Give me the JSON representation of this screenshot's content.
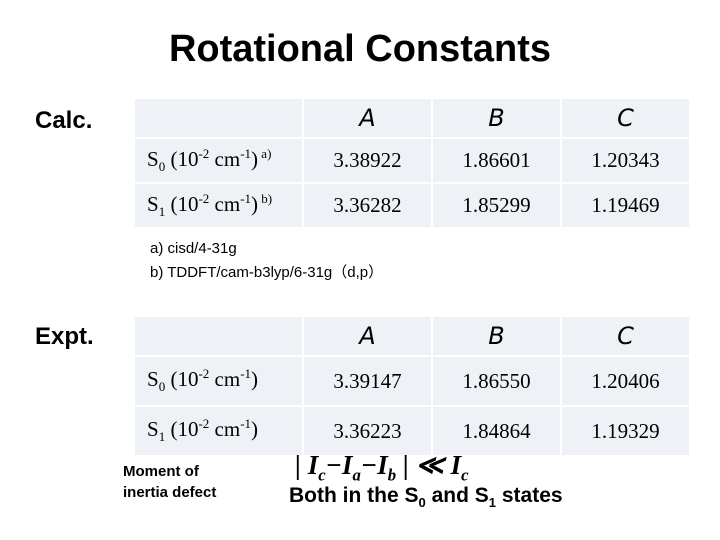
{
  "title": "Rotational Constants",
  "calc": {
    "label": "Calc.",
    "table": {
      "header": [
        "A",
        "B",
        "C"
      ],
      "rows": [
        {
          "label": [
            {
              "text": "S"
            },
            {
              "text": "0",
              "style": "sub"
            },
            {
              "text": " (10"
            },
            {
              "text": "-2",
              "style": "sup"
            },
            {
              "text": " cm"
            },
            {
              "text": "-1",
              "style": "sup"
            },
            {
              "text": ")"
            },
            {
              "text": " a)",
              "style": "sup"
            }
          ],
          "values": [
            "3.38922",
            "1.86601",
            "1.20343"
          ]
        },
        {
          "label": [
            {
              "text": "S"
            },
            {
              "text": "1",
              "style": "sub"
            },
            {
              "text": " (10"
            },
            {
              "text": "-2",
              "style": "sup"
            },
            {
              "text": " cm"
            },
            {
              "text": "-1",
              "style": "sup"
            },
            {
              "text": ")"
            },
            {
              "text": " b)",
              "style": "sup"
            }
          ],
          "values": [
            "3.36282",
            "1.85299",
            "1.19469"
          ]
        }
      ]
    }
  },
  "footnotes": [
    "a) cisd/4-31g",
    "b) TDDFT/cam-b3lyp/6-31g（d,p）"
  ],
  "expt": {
    "label": "Expt.",
    "table": {
      "header": [
        "A",
        "B",
        "C"
      ],
      "rows": [
        {
          "label": [
            {
              "text": "S"
            },
            {
              "text": "0",
              "style": "sub"
            },
            {
              "text": " (10"
            },
            {
              "text": "-2",
              "style": "sup"
            },
            {
              "text": " cm"
            },
            {
              "text": "-1",
              "style": "sup"
            },
            {
              "text": ")"
            }
          ],
          "values": [
            "3.39147",
            "1.86550",
            "1.20406"
          ]
        },
        {
          "label": [
            {
              "text": "S"
            },
            {
              "text": "1",
              "style": "sub"
            },
            {
              "text": " (10"
            },
            {
              "text": "-2",
              "style": "sup"
            },
            {
              "text": " cm"
            },
            {
              "text": "-1",
              "style": "sup"
            },
            {
              "text": ")"
            }
          ],
          "values": [
            "3.36223",
            "1.84864",
            "1.19329"
          ]
        }
      ]
    }
  },
  "defect": {
    "label": [
      "Moment of",
      "inertia defect"
    ],
    "formula": [
      {
        "text": "| I"
      },
      {
        "text": "c",
        "style": "sub"
      },
      {
        "text": "−I"
      },
      {
        "text": "a",
        "style": "sub"
      },
      {
        "text": "−I"
      },
      {
        "text": "b",
        "style": "sub"
      },
      {
        "text": " | ≪ I"
      },
      {
        "text": "c",
        "style": "sub"
      }
    ],
    "states": [
      {
        "text": "Both in the S"
      },
      {
        "text": "0",
        "style": "sub"
      },
      {
        "text": " and S"
      },
      {
        "text": "1",
        "style": "sub"
      },
      {
        "text": " states"
      }
    ]
  }
}
